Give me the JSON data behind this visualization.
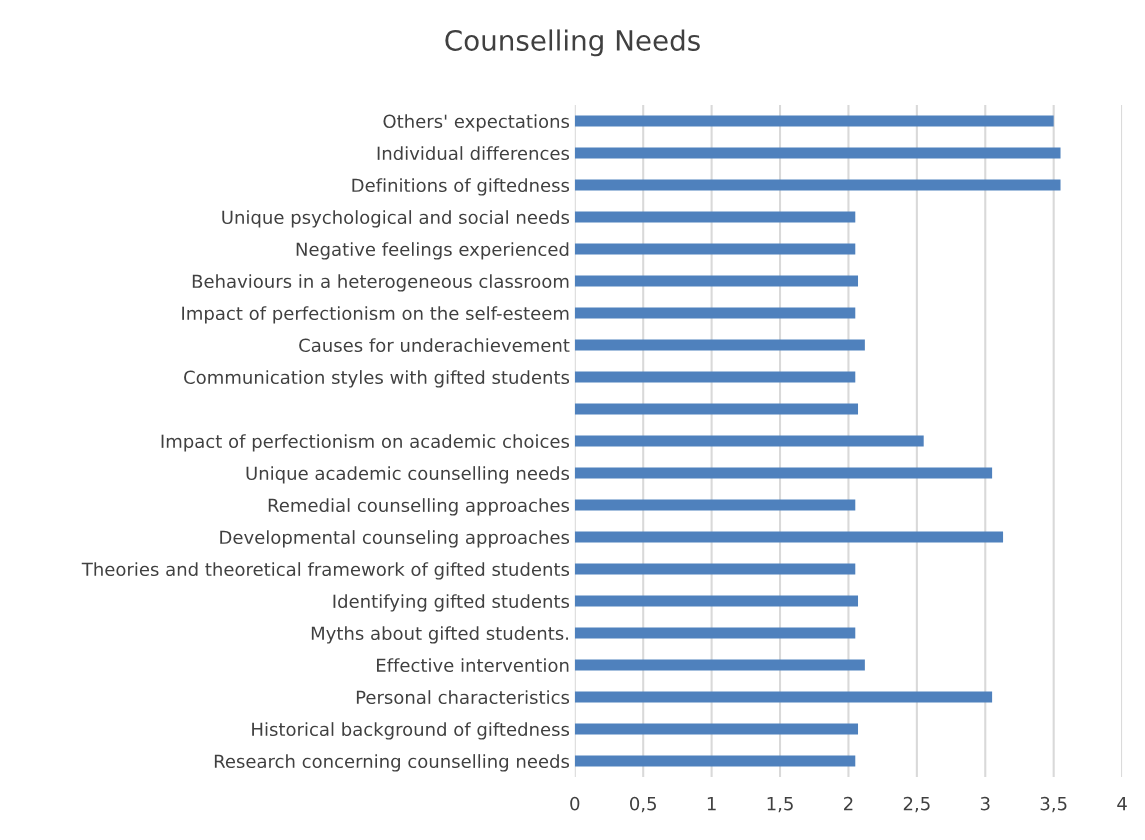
{
  "chart_data": {
    "type": "bar",
    "orientation": "horizontal",
    "title": "Counselling Needs",
    "categories": [
      "Others' expectations",
      "Individual differences",
      "Definitions of giftedness",
      "Unique psychological and social needs",
      "Negative feelings experienced",
      "Behaviours in a heterogeneous classroom",
      "Impact of perfectionism on the self-esteem",
      "Causes for underachievement",
      "Communication styles with gifted students",
      null,
      "Impact of perfectionism on academic choices",
      "Unique academic counselling needs",
      "Remedial counselling approaches",
      "Developmental counseling approaches",
      "Theories and theoretical framework of gifted students",
      "Identifying gifted students",
      "Myths about gifted students.",
      "Effective intervention",
      "Personal characteristics",
      "Historical background of giftedness",
      "Research concerning counselling needs"
    ],
    "values": [
      3.5,
      3.55,
      3.55,
      2.05,
      2.05,
      2.07,
      2.05,
      2.12,
      2.05,
      2.07,
      2.55,
      3.05,
      2.05,
      3.13,
      2.05,
      2.07,
      2.05,
      2.12,
      3.05,
      2.07,
      2.05
    ],
    "color": "#4f81bd",
    "xlim": [
      0,
      4
    ],
    "xticks": [
      0,
      {
        "value": 0.5,
        "label": "0,5"
      },
      1,
      {
        "value": 1.5,
        "label": "1,5"
      },
      2,
      {
        "value": 2.5,
        "label": "2,5"
      },
      3,
      {
        "value": 3.5,
        "label": "3,5"
      },
      4
    ],
    "grid": "x"
  }
}
